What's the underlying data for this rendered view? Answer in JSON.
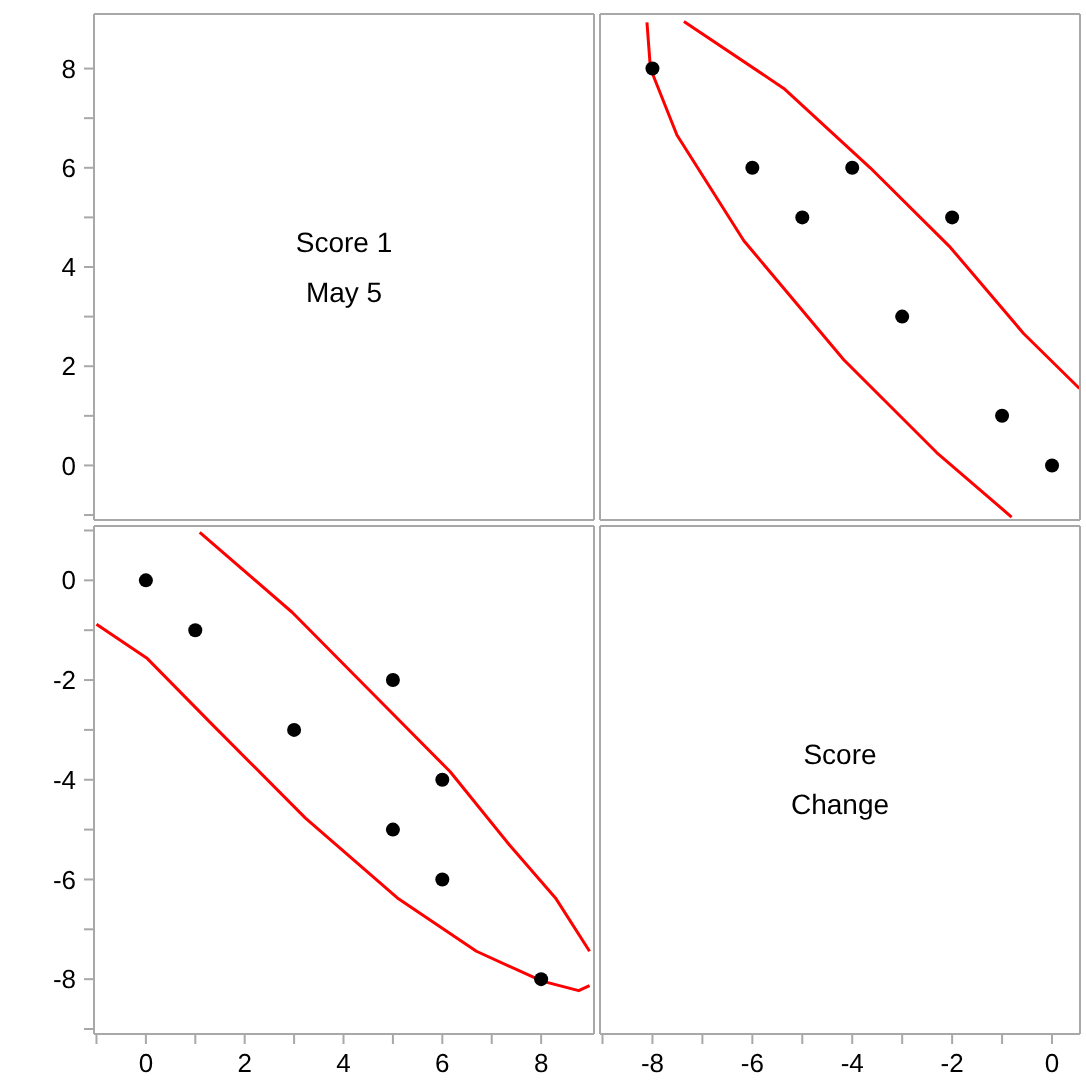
{
  "chart_data": [
    {
      "type": "scatter",
      "title": "Score 1",
      "subtitle": "May 5",
      "xlim": [
        -1.05,
        9.07
      ],
      "ylim": [
        -1.1,
        9.1
      ],
      "tick_labels": "y",
      "yticks": [
        {
          "value": -1,
          "label": null
        },
        0,
        {
          "value": 1,
          "label": null
        },
        2,
        {
          "value": 3,
          "label": null
        },
        4,
        {
          "value": 5,
          "label": null
        },
        6,
        {
          "value": 7,
          "label": null
        },
        8
      ]
    },
    {
      "type": "scatter",
      "xlim": [
        -9.05,
        0.56
      ],
      "ylim": [
        -1.1,
        9.1
      ],
      "tick_labels": false,
      "series": [
        {
          "color": "#000000",
          "marker": "circle",
          "x": [
            -8,
            -6,
            -5,
            -4,
            -3,
            -2,
            -1,
            0
          ],
          "values": [
            8,
            6,
            5,
            6,
            3,
            5,
            1,
            0
          ]
        },
        {
          "type": "line",
          "color": "#ff0000",
          "x": [
            -8.11,
            -8.04,
            -7.51,
            -6.17,
            -4.17,
            -2.31,
            -0.81
          ],
          "values": [
            8.93,
            8,
            6.66,
            4.53,
            2.13,
            0.26,
            -1.04
          ]
        },
        {
          "type": "line",
          "color": "#ff0000",
          "x": [
            -7.37,
            -5.37,
            -3.64,
            -2.04,
            -0.57,
            0.55
          ],
          "values": [
            8.95,
            7.6,
            6,
            4.4,
            2.66,
            1.55
          ]
        }
      ]
    },
    {
      "type": "scatter",
      "xlim": [
        -1.05,
        9.07
      ],
      "ylim": [
        -9.1,
        1.09
      ],
      "xticks": [
        {
          "value": -1,
          "label": null
        },
        0,
        {
          "value": 1,
          "label": null
        },
        2,
        {
          "value": 3,
          "label": null
        },
        4,
        {
          "value": 5,
          "label": null
        },
        6,
        {
          "value": 7,
          "label": null
        },
        8
      ],
      "yticks": [
        {
          "value": -9,
          "label": null
        },
        -8,
        {
          "value": -7,
          "label": null
        },
        -6,
        {
          "value": -5,
          "label": null
        },
        -4,
        {
          "value": -3,
          "label": null
        },
        -2,
        {
          "value": -1,
          "label": null
        },
        0,
        {
          "value": 1,
          "label": null
        }
      ],
      "series": [
        {
          "color": "#000000",
          "marker": "circle",
          "x": [
            0,
            1,
            3,
            5,
            5,
            6,
            6,
            8
          ],
          "values": [
            0,
            -1,
            -3,
            -2,
            -5,
            -4,
            -6,
            -8
          ]
        },
        {
          "type": "line",
          "color": "#ff0000",
          "x": [
            1.09,
            2.96,
            4.69,
            6.16,
            7.36,
            8.29,
            8.98
          ],
          "values": [
            0.96,
            -0.64,
            -2.37,
            -3.84,
            -5.31,
            -6.37,
            -7.44
          ]
        },
        {
          "type": "line",
          "color": "#ff0000",
          "x": [
            8.98,
            8.76,
            8.02,
            6.69,
            5.09,
            3.23,
            1.36,
            0.03,
            -1.0
          ],
          "values": [
            -8.13,
            -8.23,
            -8.04,
            -7.44,
            -6.37,
            -4.77,
            -2.91,
            -1.57,
            -0.88
          ]
        }
      ]
    },
    {
      "type": "scatter",
      "title": "Score Change",
      "xlim": [
        -9.05,
        0.56
      ],
      "ylim": [
        -9.1,
        1.09
      ],
      "tick_labels": "x",
      "xticks": [
        {
          "value": -9,
          "label": null
        },
        -8,
        {
          "value": -7,
          "label": null
        },
        -6,
        {
          "value": -5,
          "label": null
        },
        -4,
        {
          "value": -3,
          "label": null
        },
        -2,
        {
          "value": -1,
          "label": null
        },
        0
      ]
    }
  ]
}
